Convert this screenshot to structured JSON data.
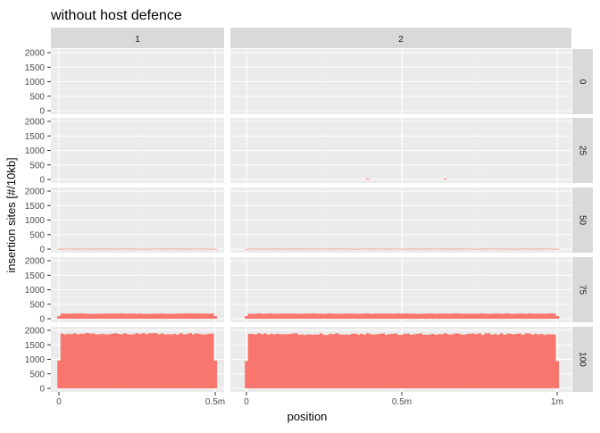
{
  "chart_data": {
    "type": "bar",
    "title": "without host defence",
    "xlabel": "position",
    "ylabel": "insertion sites [#/10kb]",
    "ylim": [
      0,
      2000
    ],
    "yticks": [
      0,
      500,
      1000,
      1500,
      2000
    ],
    "grid": true,
    "legend": "none",
    "fill_color": "#F8766D",
    "panel_background": "#EBEBEB",
    "strip_background": "#D9D9D9",
    "columns": [
      {
        "label": "1",
        "xlim": [
          0,
          500000
        ],
        "xticks": [
          {
            "value": 0,
            "label": "0"
          },
          {
            "value": 500000,
            "label": "0.5m"
          }
        ]
      },
      {
        "label": "2",
        "xlim": [
          0,
          1000000
        ],
        "xticks": [
          {
            "value": 0,
            "label": "0"
          },
          {
            "value": 500000,
            "label": "0.5m"
          },
          {
            "value": 1000000,
            "label": "1m"
          }
        ]
      }
    ],
    "rows": [
      {
        "label": "0",
        "level": [
          0,
          0
        ],
        "edge": [
          0,
          0
        ],
        "noise": 0
      },
      {
        "label": "25",
        "level": [
          0,
          0
        ],
        "edge": [
          0,
          0
        ],
        "noise": 0,
        "spikes": [
          {
            "col": 1,
            "x": 390000,
            "value": 25
          },
          {
            "col": 1,
            "x": 640000,
            "value": 25
          }
        ]
      },
      {
        "label": "50",
        "level": [
          10,
          10
        ],
        "edge": [
          5,
          5
        ],
        "noise": 2
      },
      {
        "label": "75",
        "level": [
          175,
          175
        ],
        "edge": [
          90,
          90
        ],
        "noise": 8
      },
      {
        "label": "100",
        "level": [
          1880,
          1870
        ],
        "edge": [
          960,
          940
        ],
        "noise": 30
      }
    ],
    "bin_width": 10000
  }
}
